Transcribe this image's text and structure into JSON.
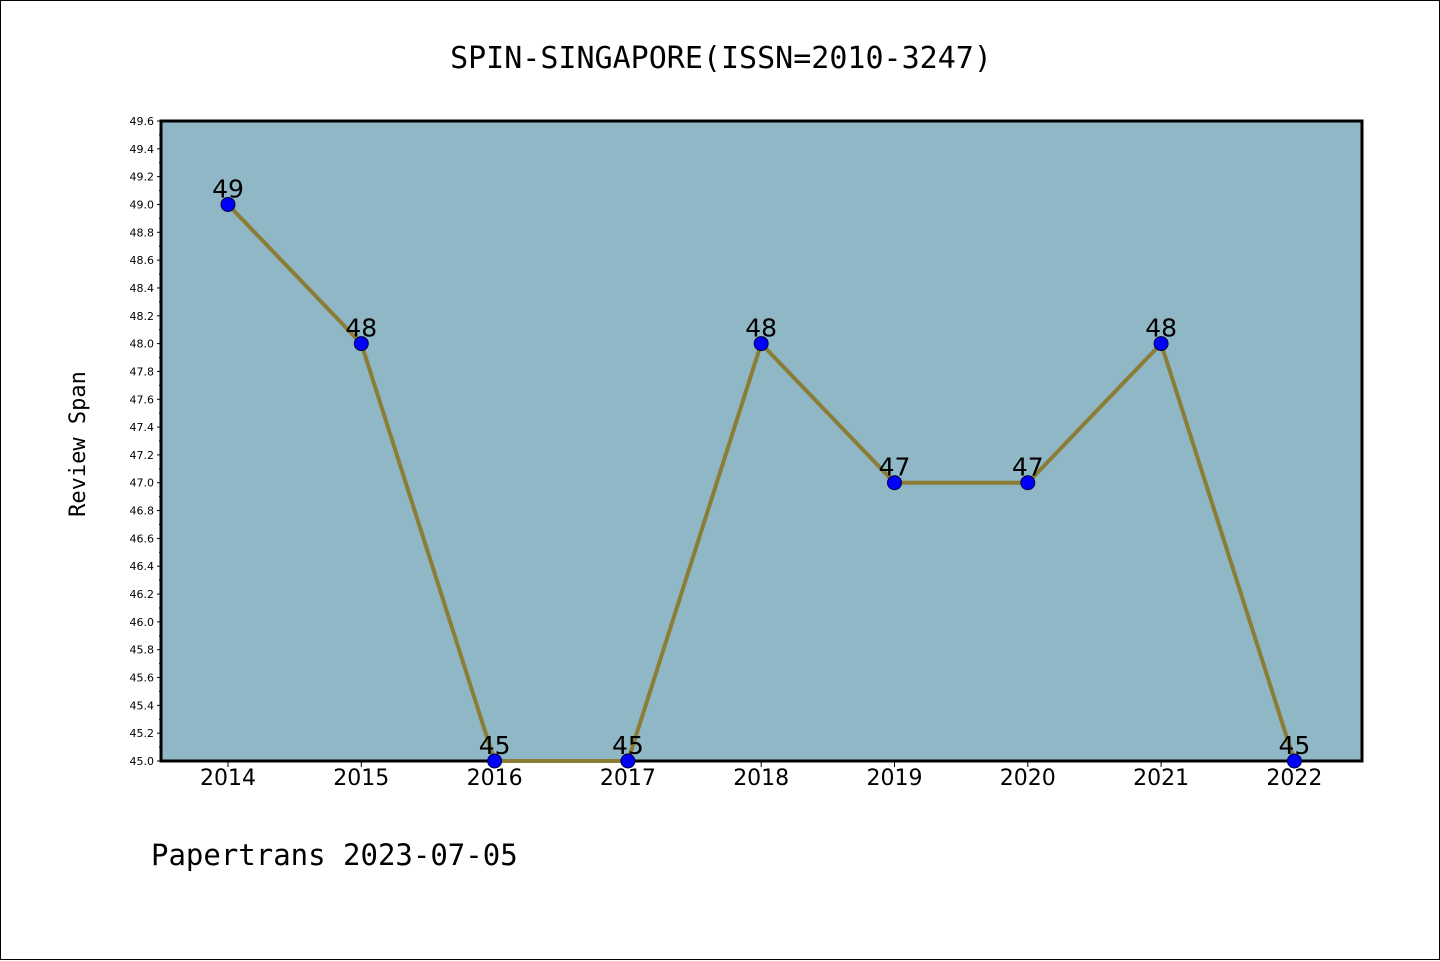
{
  "chart_data": {
    "type": "line",
    "title": "SPIN-SINGAPORE(ISSN=2010-3247)",
    "xlabel": "",
    "ylabel": "Review Span",
    "x": [
      "2014",
      "2015",
      "2016",
      "2017",
      "2018",
      "2019",
      "2020",
      "2021",
      "2022"
    ],
    "series": [
      {
        "values": [
          49,
          48,
          45,
          45,
          48,
          47,
          47,
          48,
          45
        ]
      }
    ],
    "data_labels": [
      "49",
      "48",
      "45",
      "45",
      "48",
      "47",
      "47",
      "48",
      "45"
    ],
    "yticks": [
      "45.0",
      "45.2",
      "45.4",
      "45.6",
      "45.8",
      "46.0",
      "46.2",
      "46.4",
      "46.6",
      "46.8",
      "47.0",
      "47.2",
      "47.4",
      "47.6",
      "47.8",
      "48.0",
      "48.2",
      "48.4",
      "48.6",
      "48.8",
      "49.0",
      "49.2",
      "49.4",
      "49.6"
    ],
    "ylim": [
      45.0,
      49.6
    ],
    "grid": false,
    "legend": "none",
    "colors": {
      "plot_background": "#8fb7c5",
      "line": "#8b7d35",
      "marker": "#0000ff"
    }
  },
  "footer": "Papertrans 2023-07-05"
}
